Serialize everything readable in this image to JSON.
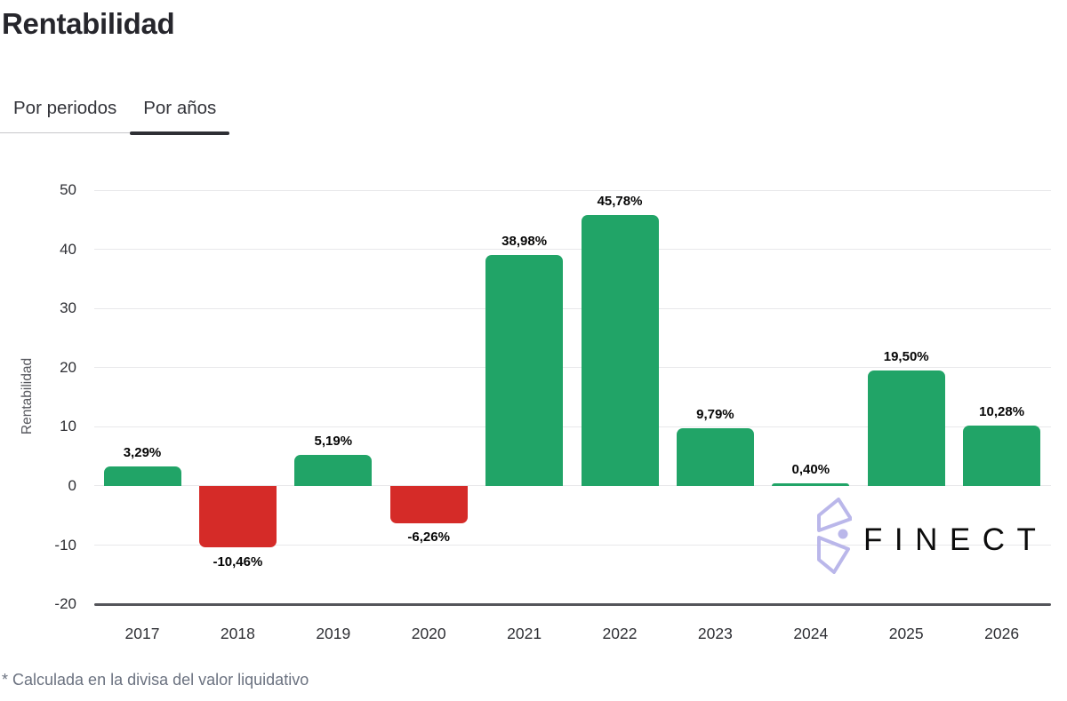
{
  "page": {
    "title": "Rentabilidad"
  },
  "tabs": [
    {
      "label": "Por periodos",
      "active": false
    },
    {
      "label": "Por años",
      "active": true
    }
  ],
  "footnote": "* Calculada en la divisa del valor liquidativo",
  "watermark": {
    "text": "FINECT",
    "icon": "finect-logo-icon"
  },
  "colors": {
    "positive": "#21a467",
    "negative": "#d52b28",
    "watermark": "#b7b4e9",
    "grid": "#e8e8ea",
    "axis": "#54555a"
  },
  "chart_data": {
    "type": "bar",
    "title": "Rentabilidad",
    "categories": [
      "2017",
      "2018",
      "2019",
      "2020",
      "2021",
      "2022",
      "2023",
      "2024",
      "2025",
      "2026"
    ],
    "values": [
      3.29,
      -10.46,
      5.19,
      -6.26,
      38.98,
      45.78,
      9.79,
      0.4,
      19.5,
      10.28
    ],
    "value_labels": [
      "3,29%",
      "-10,46%",
      "5,19%",
      "-6,26%",
      "38,98%",
      "45,78%",
      "9,79%",
      "0,40%",
      "19,50%",
      "10,28%"
    ],
    "xlabel": "",
    "ylabel": "Rentabilidad",
    "yticks": [
      50,
      40,
      30,
      20,
      10,
      0,
      -10,
      -20
    ],
    "ylim": [
      -20,
      50
    ],
    "grid": true,
    "legend": false,
    "bar_color_rule": "green if value >= 0 else red"
  }
}
